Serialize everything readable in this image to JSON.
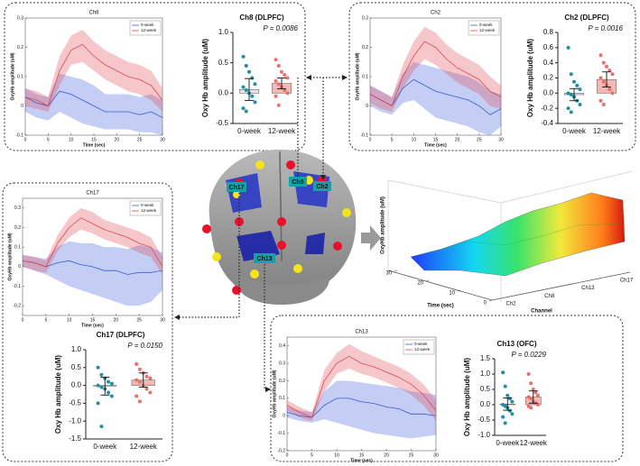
{
  "chart_data": [
    {
      "type": "line",
      "title": "Ch8",
      "xlabel": "Time (sec)",
      "ylabel": "OxyHb amplitude (uM)",
      "x": [
        0,
        2.5,
        5,
        7.5,
        10,
        12.5,
        15,
        17.5,
        20,
        22.5,
        25,
        27.5,
        30
      ],
      "xlim": [
        0,
        30
      ],
      "xticks": [
        0,
        5,
        10,
        15,
        20,
        25,
        30
      ],
      "ylim": [
        -0.1,
        0.3
      ],
      "yticks": [
        -0.1,
        0,
        0.1,
        0.2,
        0.3
      ],
      "series": [
        {
          "name": "0-week",
          "color": "#3b5bd6",
          "values": [
            0.03,
            0.01,
            0,
            0.05,
            0.04,
            0.02,
            0,
            -0.02,
            -0.02,
            -0.02,
            -0.03,
            -0.02,
            -0.04
          ],
          "lower": [
            -0.02,
            -0.04,
            -0.05,
            -0.02,
            -0.04,
            -0.06,
            -0.07,
            -0.08,
            -0.08,
            -0.08,
            -0.09,
            -0.09,
            -0.1
          ],
          "upper": [
            0.06,
            0.04,
            0.03,
            0.11,
            0.1,
            0.09,
            0.07,
            0.04,
            0.04,
            0.04,
            0.03,
            0.04,
            0.02
          ]
        },
        {
          "name": "12-week",
          "color": "#e0474f",
          "values": [
            0.03,
            0.02,
            0,
            0.12,
            0.19,
            0.21,
            0.17,
            0.14,
            0.12,
            0.1,
            0.09,
            0.07,
            0.02
          ],
          "lower": [
            0,
            -0.01,
            -0.02,
            0.07,
            0.14,
            0.15,
            0.12,
            0.09,
            0.07,
            0.05,
            0.04,
            0.02,
            -0.02
          ],
          "upper": [
            0.06,
            0.05,
            0.03,
            0.17,
            0.24,
            0.26,
            0.22,
            0.19,
            0.17,
            0.15,
            0.14,
            0.12,
            0.06
          ]
        }
      ]
    },
    {
      "type": "dot",
      "title": "Ch8 (DLPFC)",
      "ylabel": "Oxy Hb amplitude (uM)",
      "annotation": "P = 0.0086",
      "categories": [
        "0-week",
        "12-week"
      ],
      "colors": [
        "#1f8fa3",
        "#e8706c"
      ],
      "bar_colors": [
        "#e4e4e4",
        "#f4b9b5"
      ],
      "values": [
        0.06,
        0.16
      ],
      "errors": [
        0.18,
        0.09
      ],
      "points": [
        [
          0.6,
          0.45,
          0.35,
          0.25,
          0.15,
          0.1,
          0.05,
          0,
          -0.05,
          -0.15,
          -0.25,
          -0.3
        ],
        [
          0.55,
          0.45,
          0.35,
          0.3,
          0.25,
          0.2,
          0.15,
          0.1,
          0.05,
          0,
          -0.05,
          -0.2
        ]
      ],
      "ylim": [
        -0.5,
        1.0
      ],
      "yticks": [
        -0.5,
        {
          "value": 0,
          "label": "0.0"
        },
        0.5,
        {
          "value": 1,
          "label": "1.0"
        }
      ]
    },
    {
      "type": "line",
      "title": "Ch2",
      "xlabel": "Time (sec)",
      "ylabel": "OxyHb amplitude (uM)",
      "x": [
        0,
        2.5,
        5,
        7.5,
        10,
        12.5,
        15,
        17.5,
        20,
        22.5,
        25,
        27.5,
        30
      ],
      "xlim": [
        0,
        30
      ],
      "xticks": [
        0,
        5,
        10,
        15,
        20,
        25,
        30
      ],
      "ylim": [
        -0.1,
        0.3
      ],
      "yticks": [
        -0.1,
        0,
        0.1,
        0.2,
        0.3
      ],
      "series": [
        {
          "name": "0-week",
          "color": "#3b5bd6",
          "values": [
            0.04,
            0.02,
            0,
            0.06,
            0.09,
            0.07,
            0.05,
            0.04,
            0.03,
            0.02,
            0,
            -0.03,
            -0.01
          ],
          "lower": [
            0,
            -0.02,
            -0.03,
            0.01,
            0.02,
            -0.01,
            -0.04,
            -0.05,
            -0.06,
            -0.07,
            -0.09,
            -0.1,
            -0.07
          ],
          "upper": [
            0.07,
            0.05,
            0.03,
            0.11,
            0.15,
            0.14,
            0.13,
            0.12,
            0.11,
            0.1,
            0.08,
            0.05,
            0.04
          ]
        },
        {
          "name": "12-week",
          "color": "#e0474f",
          "values": [
            0.04,
            0.02,
            0,
            0.1,
            0.17,
            0.22,
            0.2,
            0.16,
            0.13,
            0.11,
            0.09,
            0.05,
            0.03
          ],
          "lower": [
            0.01,
            -0.01,
            -0.02,
            0.06,
            0.12,
            0.16,
            0.14,
            0.11,
            0.08,
            0.06,
            0.04,
            0,
            -0.01
          ],
          "upper": [
            0.07,
            0.05,
            0.03,
            0.14,
            0.22,
            0.27,
            0.25,
            0.21,
            0.18,
            0.16,
            0.14,
            0.1,
            0.07
          ]
        }
      ]
    },
    {
      "type": "dot",
      "title": "Ch2 (DLPFC)",
      "ylabel": "Oxy Hb amplitude (uM)",
      "annotation": "P = 0.0016",
      "categories": [
        "0-week",
        "12-week"
      ],
      "colors": [
        "#1f8fa3",
        "#e8706c"
      ],
      "bar_colors": [
        "#e4e4e4",
        "#f4b9b5"
      ],
      "values": [
        -0.02,
        0.18
      ],
      "errors": [
        0.08,
        0.1
      ],
      "points": [
        [
          0.6,
          0.25,
          0.15,
          0.1,
          0.05,
          0,
          -0.02,
          -0.05,
          -0.1,
          -0.15,
          -0.2,
          -0.25
        ],
        [
          0.5,
          0.4,
          0.35,
          0.3,
          0.25,
          0.2,
          0.15,
          0.1,
          0.05,
          0,
          -0.1,
          -0.15
        ]
      ],
      "ylim": [
        -0.4,
        0.8
      ],
      "yticks": [
        -0.4,
        -0.2,
        {
          "value": 0,
          "label": "0.0"
        },
        0.2,
        0.4,
        0.6,
        0.8
      ]
    },
    {
      "type": "line",
      "title": "Ch17",
      "xlabel": "Time (sec)",
      "ylabel": "OxyHb amplitude (uM)",
      "x": [
        0,
        2.5,
        5,
        7.5,
        10,
        12.5,
        15,
        17.5,
        20,
        22.5,
        25,
        27.5,
        30
      ],
      "xlim": [
        0,
        30
      ],
      "xticks": [
        0,
        5,
        10,
        15,
        20,
        25,
        30
      ],
      "ylim": [
        -0.25,
        0.35
      ],
      "yticks": [
        -0.2,
        -0.1,
        0,
        0.1,
        0.2,
        0.3
      ],
      "series": [
        {
          "name": "0-week",
          "color": "#3b5bd6",
          "values": [
            0.03,
            0.02,
            0,
            0.02,
            0.03,
            0.01,
            0,
            -0.02,
            -0.02,
            -0.04,
            -0.03,
            -0.03,
            -0.02
          ],
          "lower": [
            0,
            -0.02,
            -0.04,
            -0.07,
            -0.1,
            -0.12,
            -0.14,
            -0.16,
            -0.18,
            -0.2,
            -0.2,
            -0.18,
            -0.12
          ],
          "upper": [
            0.06,
            0.05,
            0.04,
            0.1,
            0.13,
            0.12,
            0.12,
            0.1,
            0.1,
            0.09,
            0.11,
            0.1,
            0.07
          ]
        },
        {
          "name": "12-week",
          "color": "#e0474f",
          "values": [
            0.03,
            0.02,
            0,
            0.12,
            0.2,
            0.25,
            0.22,
            0.19,
            0.17,
            0.15,
            0.12,
            0.1,
            0
          ],
          "lower": [
            0,
            -0.02,
            -0.03,
            0.08,
            0.15,
            0.19,
            0.17,
            0.14,
            0.12,
            0.1,
            0.07,
            0.05,
            -0.04
          ],
          "upper": [
            0.06,
            0.05,
            0.03,
            0.16,
            0.25,
            0.3,
            0.28,
            0.24,
            0.22,
            0.2,
            0.18,
            0.15,
            0.05
          ]
        }
      ]
    },
    {
      "type": "dot",
      "title": "Ch17 (DLPFC)",
      "ylabel": "Oxy Hb amplitude (uM)",
      "annotation": "P = 0.0150",
      "categories": [
        "0-week",
        "12-week"
      ],
      "colors": [
        "#1f8fa3",
        "#e8706c"
      ],
      "bar_colors": [
        "#e4e4e4",
        "#f4b9b5"
      ],
      "values": [
        -0.02,
        0.15
      ],
      "errors": [
        0.25,
        0.2
      ],
      "points": [
        [
          0.5,
          0.3,
          0.2,
          0.1,
          0.05,
          0,
          -0.05,
          -0.1,
          -0.2,
          -0.3,
          -0.5,
          -1.15
        ],
        [
          0.6,
          0.45,
          0.35,
          0.25,
          0.2,
          0.15,
          0.1,
          0,
          -0.1,
          -0.2,
          -0.3,
          -0.45
        ]
      ],
      "ylim": [
        -1.5,
        1.0
      ],
      "yticks": [
        -1.5,
        {
          "value": -1,
          "label": "-1.0"
        },
        -0.5,
        {
          "value": 0,
          "label": "0.0"
        },
        0.5,
        {
          "value": 1,
          "label": "1.0"
        }
      ]
    },
    {
      "type": "line",
      "title": "Ch13",
      "xlabel": "Time (sec)",
      "ylabel": "OxyHb amplitude (uM)",
      "x": [
        0,
        2.5,
        5,
        7.5,
        10,
        12.5,
        15,
        17.5,
        20,
        22.5,
        25,
        27.5,
        30
      ],
      "xlim": [
        0,
        30
      ],
      "xticks": [
        0,
        5,
        10,
        15,
        20,
        25,
        30
      ],
      "ylim": [
        -0.2,
        0.45
      ],
      "yticks": [
        -0.2,
        -0.1,
        0,
        0.1,
        0.2,
        0.3,
        0.4
      ],
      "series": [
        {
          "name": "0-week",
          "color": "#3b5bd6",
          "values": [
            0.02,
            0,
            -0.01,
            0.06,
            0.1,
            0.1,
            0.08,
            0.07,
            0.05,
            0.04,
            0.01,
            0.01,
            0
          ],
          "lower": [
            -0.01,
            -0.03,
            -0.04,
            -0.02,
            -0.04,
            -0.06,
            -0.08,
            -0.1,
            -0.11,
            -0.12,
            -0.13,
            -0.12,
            -0.11
          ],
          "upper": [
            0.05,
            0.03,
            0.02,
            0.14,
            0.2,
            0.2,
            0.19,
            0.18,
            0.17,
            0.16,
            0.14,
            0.13,
            0.12
          ]
        },
        {
          "name": "12-week",
          "color": "#e0474f",
          "values": [
            0.06,
            0.02,
            -0.01,
            0.2,
            0.3,
            0.34,
            0.3,
            0.28,
            0.25,
            0.22,
            0.18,
            0.12,
            0.03
          ],
          "lower": [
            0.03,
            -0.01,
            -0.03,
            0.14,
            0.24,
            0.27,
            0.24,
            0.22,
            0.19,
            0.16,
            0.12,
            0.06,
            -0.03
          ],
          "upper": [
            0.09,
            0.05,
            0.02,
            0.26,
            0.36,
            0.41,
            0.37,
            0.34,
            0.31,
            0.28,
            0.24,
            0.18,
            0.09
          ]
        }
      ]
    },
    {
      "type": "dot",
      "title": "Ch13 (OFC)",
      "ylabel": "Oxy Hb amplitude (uM)",
      "annotation": "P = 0.0229",
      "categories": [
        "0-week",
        "12-week"
      ],
      "colors": [
        "#1f8fa3",
        "#e8706c"
      ],
      "bar_colors": [
        "#e4e4e4",
        "#f4b9b5"
      ],
      "values": [
        0.02,
        0.25
      ],
      "errors": [
        0.2,
        0.2
      ],
      "points": [
        [
          1.05,
          0.6,
          0.3,
          0.2,
          0.1,
          0,
          -0.05,
          -0.1,
          -0.2,
          -0.3,
          -0.4,
          -0.6
        ],
        [
          1.0,
          0.7,
          0.5,
          0.4,
          0.3,
          0.25,
          0.2,
          0.1,
          0.05,
          0,
          -0.05,
          -0.1
        ]
      ],
      "ylim": [
        -1.0,
        1.5
      ],
      "yticks": [
        {
          "value": -1,
          "label": "-1.0"
        },
        -0.5,
        {
          "value": 0,
          "label": "0.0"
        },
        0.5,
        {
          "value": 1,
          "label": "1.0"
        },
        1.5
      ]
    },
    {
      "type": "surface",
      "ylabel": "OxyHb amplitude (uM)",
      "xlabel": "Time (sec)",
      "zlabel": "Channel",
      "xlim": [
        0,
        30
      ],
      "xticks": [
        0,
        10,
        20,
        30
      ],
      "channels": [
        "Ch2",
        "Ch8",
        "Ch13",
        "Ch17"
      ]
    }
  ],
  "brain": {
    "labels": [
      "Ch17",
      "Ch8",
      "Ch2",
      "Ch13"
    ]
  }
}
